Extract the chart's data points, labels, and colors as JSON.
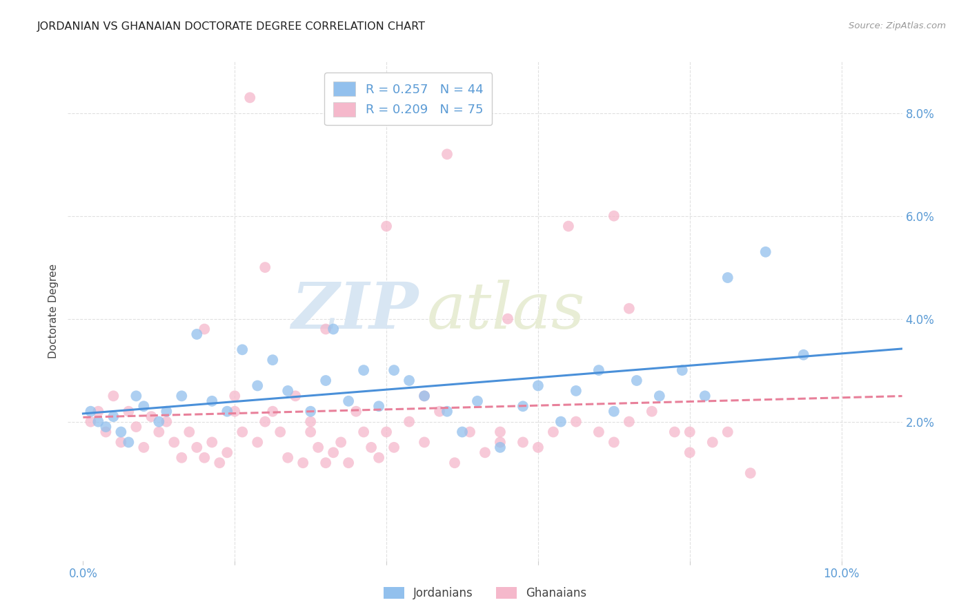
{
  "title": "JORDANIAN VS GHANAIAN DOCTORATE DEGREE CORRELATION CHART",
  "source": "Source: ZipAtlas.com",
  "ylabel_label": "Doctorate Degree",
  "xlim": [
    -0.002,
    0.108
  ],
  "ylim": [
    -0.007,
    0.09
  ],
  "background_color": "#ffffff",
  "grid_color": "#e0e0e0",
  "jordanian_color": "#92c0ed",
  "ghanaian_color": "#f5b8cb",
  "jordanian_line_color": "#4a90d9",
  "ghanaian_line_color": "#e8809a",
  "R_jordanian": 0.257,
  "N_jordanian": 44,
  "R_ghanaian": 0.209,
  "N_ghanaian": 75,
  "legend_label_jordanian": "Jordanians",
  "legend_label_ghanaian": "Ghanaians",
  "watermark_zip": "ZIP",
  "watermark_atlas": "atlas",
  "jordanian_x": [
    0.001,
    0.002,
    0.003,
    0.004,
    0.005,
    0.006,
    0.007,
    0.008,
    0.01,
    0.011,
    0.013,
    0.015,
    0.017,
    0.019,
    0.021,
    0.023,
    0.025,
    0.027,
    0.03,
    0.032,
    0.033,
    0.035,
    0.037,
    0.039,
    0.041,
    0.043,
    0.045,
    0.048,
    0.05,
    0.052,
    0.055,
    0.058,
    0.06,
    0.063,
    0.065,
    0.068,
    0.07,
    0.073,
    0.076,
    0.079,
    0.082,
    0.085,
    0.09,
    0.095
  ],
  "jordanian_y": [
    0.022,
    0.02,
    0.019,
    0.021,
    0.018,
    0.016,
    0.025,
    0.023,
    0.02,
    0.022,
    0.025,
    0.037,
    0.024,
    0.022,
    0.034,
    0.027,
    0.032,
    0.026,
    0.022,
    0.028,
    0.038,
    0.024,
    0.03,
    0.023,
    0.03,
    0.028,
    0.025,
    0.022,
    0.018,
    0.024,
    0.015,
    0.023,
    0.027,
    0.02,
    0.026,
    0.03,
    0.022,
    0.028,
    0.025,
    0.03,
    0.025,
    0.048,
    0.053,
    0.033
  ],
  "ghanaian_x": [
    0.001,
    0.002,
    0.003,
    0.004,
    0.005,
    0.006,
    0.007,
    0.008,
    0.009,
    0.01,
    0.011,
    0.012,
    0.013,
    0.014,
    0.015,
    0.016,
    0.017,
    0.018,
    0.019,
    0.02,
    0.021,
    0.022,
    0.023,
    0.024,
    0.025,
    0.026,
    0.027,
    0.028,
    0.029,
    0.03,
    0.031,
    0.032,
    0.033,
    0.034,
    0.035,
    0.036,
    0.037,
    0.038,
    0.039,
    0.04,
    0.041,
    0.043,
    0.045,
    0.047,
    0.049,
    0.051,
    0.053,
    0.055,
    0.058,
    0.06,
    0.062,
    0.065,
    0.068,
    0.07,
    0.072,
    0.075,
    0.078,
    0.08,
    0.083,
    0.085,
    0.016,
    0.024,
    0.032,
    0.04,
    0.048,
    0.056,
    0.064,
    0.072,
    0.08,
    0.088,
    0.02,
    0.03,
    0.045,
    0.055,
    0.07
  ],
  "ghanaian_y": [
    0.02,
    0.022,
    0.018,
    0.025,
    0.016,
    0.022,
    0.019,
    0.015,
    0.021,
    0.018,
    0.02,
    0.016,
    0.013,
    0.018,
    0.015,
    0.013,
    0.016,
    0.012,
    0.014,
    0.022,
    0.018,
    0.083,
    0.016,
    0.02,
    0.022,
    0.018,
    0.013,
    0.025,
    0.012,
    0.018,
    0.015,
    0.012,
    0.014,
    0.016,
    0.012,
    0.022,
    0.018,
    0.015,
    0.013,
    0.018,
    0.015,
    0.02,
    0.016,
    0.022,
    0.012,
    0.018,
    0.014,
    0.016,
    0.016,
    0.015,
    0.018,
    0.02,
    0.018,
    0.016,
    0.02,
    0.022,
    0.018,
    0.014,
    0.016,
    0.018,
    0.038,
    0.05,
    0.038,
    0.058,
    0.072,
    0.04,
    0.058,
    0.042,
    0.018,
    0.01,
    0.025,
    0.02,
    0.025,
    0.018,
    0.06
  ]
}
